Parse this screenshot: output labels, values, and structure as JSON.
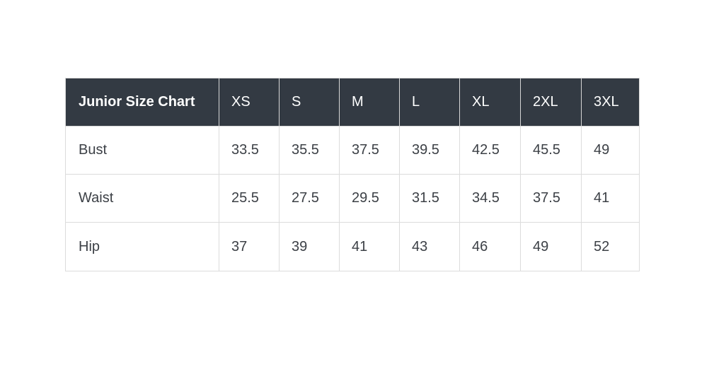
{
  "colors": {
    "page_bg": "#ffffff",
    "header_bg": "#333a43",
    "header_text": "#ffffff",
    "body_text": "#3c4046",
    "border": "#dcdcdc"
  },
  "chart_data": {
    "type": "table",
    "title": "Junior Size Chart",
    "columns": [
      "Junior Size Chart",
      "XS",
      "S",
      "M",
      "L",
      "XL",
      "2XL",
      "3XL"
    ],
    "rows": [
      {
        "label": "Bust",
        "values": [
          "33.5",
          "35.5",
          "37.5",
          "39.5",
          "42.5",
          "45.5",
          "49"
        ]
      },
      {
        "label": "Waist",
        "values": [
          "25.5",
          "27.5",
          "29.5",
          "31.5",
          "34.5",
          "37.5",
          "41"
        ]
      },
      {
        "label": "Hip",
        "values": [
          "37",
          "39",
          "41",
          "43",
          "46",
          "49",
          "52"
        ]
      }
    ]
  }
}
